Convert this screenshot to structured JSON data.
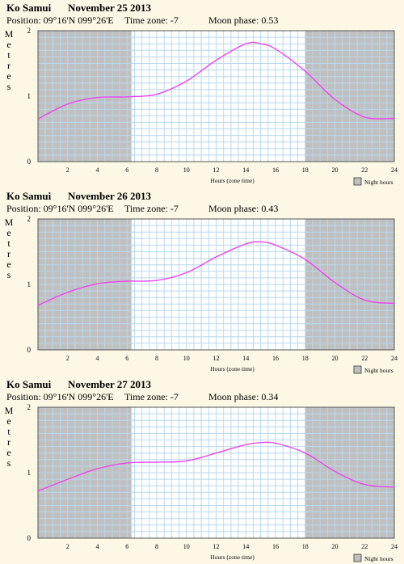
{
  "chart_data": [
    {
      "type": "line",
      "place": "Ko Samui",
      "date": "November 25 2013",
      "position_label": "Position: 09°16'N 099°26'E",
      "timezone_label": "Time zone: -7",
      "moon_label": "Moon phase: 0.53",
      "xlabel": "Hours (zone time)",
      "ylabel": "Metres",
      "legend": "Night hours",
      "xlim": [
        0,
        24
      ],
      "ylim": [
        0,
        2
      ],
      "x_ticks": [
        "2",
        "4",
        "6",
        "8",
        "10",
        "12",
        "14",
        "16",
        "18",
        "20",
        "22",
        "24"
      ],
      "y_ticks": [
        "0",
        "1",
        "2"
      ],
      "night_shading": [
        [
          0,
          6.3
        ],
        [
          18,
          24
        ]
      ],
      "x": [
        0,
        2,
        4,
        6,
        8,
        10,
        12,
        14,
        15,
        16,
        18,
        20,
        22,
        24
      ],
      "y": [
        0.65,
        0.88,
        0.98,
        0.99,
        1.03,
        1.23,
        1.55,
        1.8,
        1.8,
        1.72,
        1.38,
        0.95,
        0.68,
        0.66
      ]
    },
    {
      "type": "line",
      "place": "Ko Samui",
      "date": "November 26 2013",
      "position_label": "Position: 09°16'N 099°26'E",
      "timezone_label": "Time zone: -7",
      "moon_label": "Moon phase: 0.43",
      "xlabel": "Hours (zone time)",
      "ylabel": "Metres",
      "legend": "Night hours",
      "xlim": [
        0,
        24
      ],
      "ylim": [
        0,
        2
      ],
      "x_ticks": [
        "2",
        "4",
        "6",
        "8",
        "10",
        "12",
        "14",
        "16",
        "18",
        "20",
        "22",
        "24"
      ],
      "y_ticks": [
        "0",
        "1",
        "2"
      ],
      "night_shading": [
        [
          0,
          6.3
        ],
        [
          18,
          24
        ]
      ],
      "x": [
        0,
        2,
        4,
        6,
        8,
        10,
        12,
        14,
        15,
        16,
        18,
        20,
        22,
        24
      ],
      "y": [
        0.68,
        0.88,
        1.01,
        1.05,
        1.06,
        1.18,
        1.42,
        1.62,
        1.65,
        1.6,
        1.38,
        1.03,
        0.76,
        0.71
      ]
    },
    {
      "type": "line",
      "place": "Ko Samui",
      "date": "November 27 2013",
      "position_label": "Position: 09°16'N 099°26'E",
      "timezone_label": "Time zone: -7",
      "moon_label": "Moon phase: 0.34",
      "xlabel": "Hours (zone time)",
      "ylabel": "Metres",
      "legend": "Night hours",
      "xlim": [
        0,
        24
      ],
      "ylim": [
        0,
        2
      ],
      "x_ticks": [
        "2",
        "4",
        "6",
        "8",
        "10",
        "12",
        "14",
        "16",
        "18",
        "20",
        "22",
        "24"
      ],
      "y_ticks": [
        "0",
        "1",
        "2"
      ],
      "night_shading": [
        [
          0,
          6.3
        ],
        [
          18,
          24
        ]
      ],
      "x": [
        0,
        2,
        4,
        6,
        8,
        10,
        12,
        14,
        15,
        16,
        18,
        20,
        22,
        24
      ],
      "y": [
        0.72,
        0.9,
        1.06,
        1.15,
        1.16,
        1.18,
        1.3,
        1.43,
        1.46,
        1.45,
        1.3,
        1.02,
        0.82,
        0.78
      ]
    }
  ],
  "colors": {
    "background": "#fdf8e6",
    "night": "#c0c0c0",
    "day": "#ffffff",
    "grid": "#b8d8ee",
    "curve": "#ee44ee"
  }
}
